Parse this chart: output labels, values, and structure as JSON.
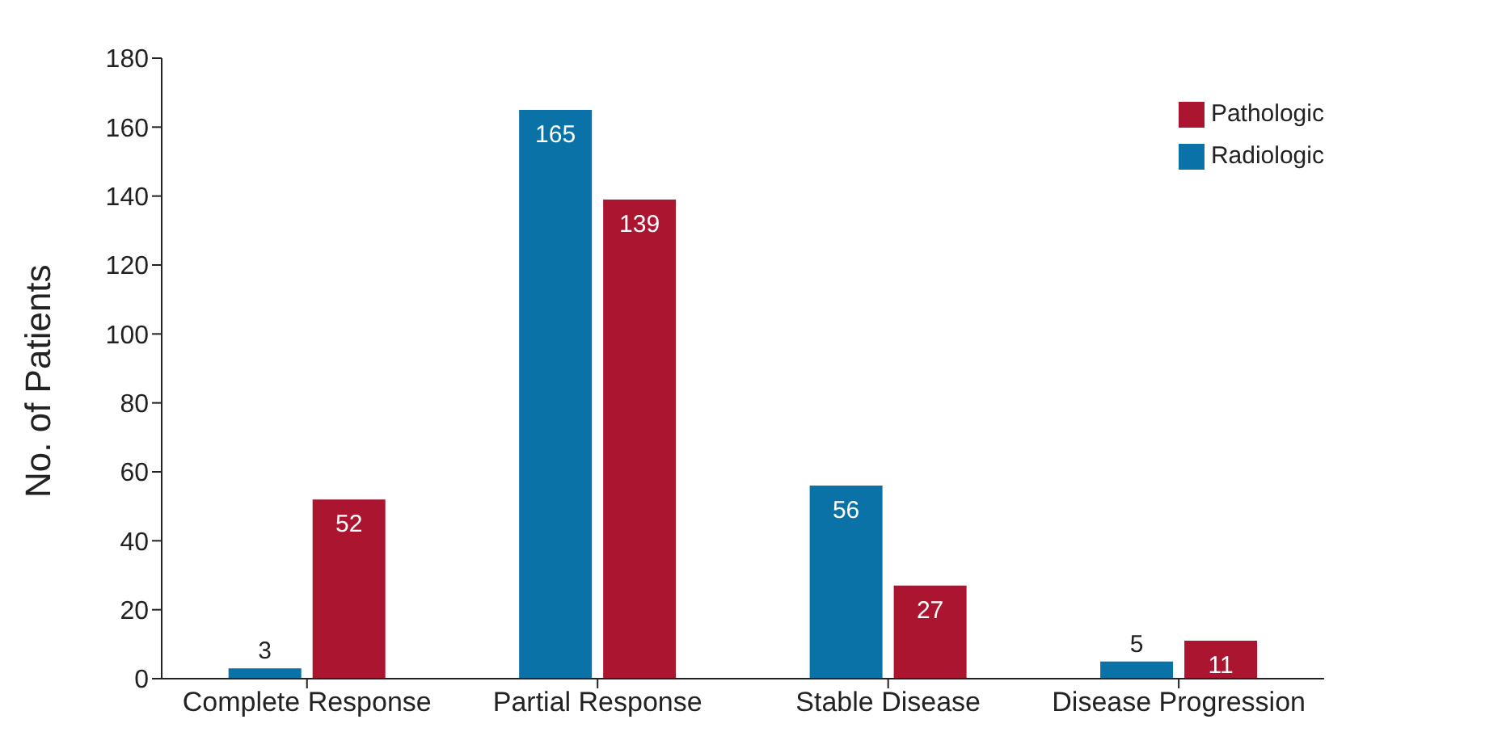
{
  "chart_data": {
    "type": "bar",
    "ylabel": "No. of Patients",
    "categories": [
      "Complete Response",
      "Partial Response",
      "Stable Disease",
      "Disease Progression"
    ],
    "series": [
      {
        "name": "Radiologic",
        "color": "#0a72a6",
        "values": [
          3,
          165,
          56,
          5
        ]
      },
      {
        "name": "Pathologic",
        "color": "#ab1530",
        "values": [
          52,
          139,
          27,
          11
        ]
      }
    ],
    "ylim": [
      0,
      180
    ],
    "yticks": [
      0,
      20,
      40,
      60,
      80,
      100,
      120,
      140,
      160,
      180
    ],
    "grid": false,
    "legend": "top right",
    "data_labels": true
  }
}
